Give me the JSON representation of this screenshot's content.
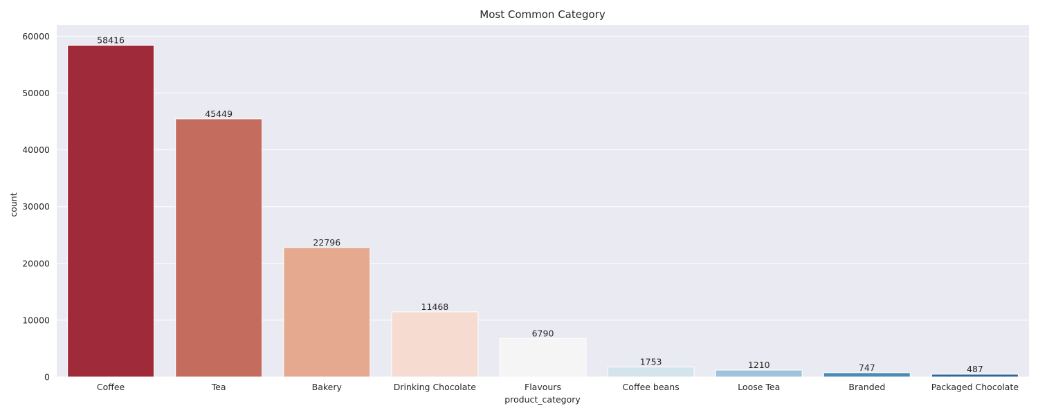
{
  "chart_data": {
    "type": "bar",
    "title": "Most Common Category",
    "xlabel": "product_category",
    "ylabel": "count",
    "categories": [
      "Coffee",
      "Tea",
      "Bakery",
      "Drinking Chocolate",
      "Flavours",
      "Coffee beans",
      "Loose Tea",
      "Branded",
      "Packaged Chocolate"
    ],
    "values": [
      58416,
      45449,
      22796,
      11468,
      6790,
      1753,
      1210,
      747,
      487
    ],
    "data_labels": [
      "58416",
      "45449",
      "22796",
      "11468",
      "6790",
      "1753",
      "1210",
      "747",
      "487"
    ],
    "colors": [
      "#9f2a3a",
      "#c46c5d",
      "#e4a98e",
      "#f6dcd0",
      "#f4f5f4",
      "#d4e4ec",
      "#9dc4db",
      "#4a8cb6",
      "#30679a"
    ],
    "ylim": [
      0,
      62000
    ],
    "yticks": [
      0,
      10000,
      20000,
      30000,
      40000,
      50000,
      60000
    ],
    "grid": true,
    "background": "#eaeaf2"
  }
}
